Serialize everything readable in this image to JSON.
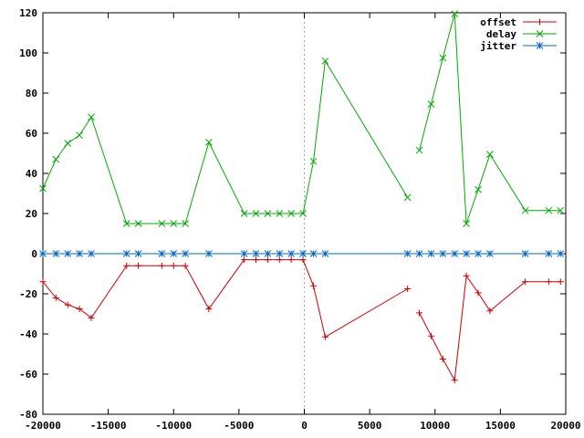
{
  "chart_data": {
    "type": "line",
    "title": "",
    "xlabel": "",
    "ylabel": "",
    "xlim": [
      -20000,
      20000
    ],
    "ylim": [
      -80,
      120
    ],
    "x_ticks": [
      -20000,
      -15000,
      -10000,
      -5000,
      0,
      5000,
      10000,
      15000,
      20000
    ],
    "y_ticks": [
      -80,
      -60,
      -40,
      -20,
      0,
      20,
      40,
      60,
      80,
      100,
      120
    ],
    "zero_line_x": 0,
    "grid": false,
    "legend_position": "top-right",
    "series": [
      {
        "name": "offset",
        "color": "#cc0000",
        "marker": "plus",
        "segments": [
          [
            [
              -20000,
              -14
            ],
            [
              -19000,
              -22
            ],
            [
              -18100,
              -25.5
            ],
            [
              -17200,
              -27.5
            ],
            [
              -16300,
              -32
            ],
            [
              -13600,
              -6
            ],
            [
              -12700,
              -6
            ],
            [
              -10900,
              -6
            ],
            [
              -10000,
              -6
            ],
            [
              -9100,
              -6
            ],
            [
              -7300,
              -27.5
            ],
            [
              -4600,
              -3
            ],
            [
              -3700,
              -3
            ],
            [
              -2800,
              -3
            ],
            [
              -1900,
              -3
            ],
            [
              -1000,
              -3
            ],
            [
              -100,
              -3
            ],
            [
              700,
              -16
            ],
            [
              1600,
              -41.5
            ],
            [
              7900,
              -17.5
            ]
          ],
          [
            [
              8800,
              -29.5
            ],
            [
              9700,
              -41
            ],
            [
              10600,
              -52.5
            ],
            [
              11500,
              -63
            ],
            [
              12400,
              -11
            ],
            [
              13300,
              -19.5
            ],
            [
              14200,
              -28.5
            ],
            [
              16900,
              -14
            ],
            [
              18700,
              -14
            ],
            [
              19600,
              -14
            ]
          ]
        ]
      },
      {
        "name": "delay",
        "color": "#00aa00",
        "marker": "cross",
        "segments": [
          [
            [
              -20000,
              32.5
            ],
            [
              -19000,
              47
            ],
            [
              -18100,
              55
            ],
            [
              -17200,
              59
            ],
            [
              -16300,
              68
            ],
            [
              -13600,
              15
            ],
            [
              -12700,
              15
            ],
            [
              -10900,
              15
            ],
            [
              -10000,
              15
            ],
            [
              -9100,
              15
            ],
            [
              -7300,
              55.5
            ],
            [
              -4600,
              20
            ],
            [
              -3700,
              20
            ],
            [
              -2800,
              20
            ],
            [
              -1900,
              20
            ],
            [
              -1000,
              20
            ],
            [
              -100,
              20
            ],
            [
              700,
              46
            ],
            [
              1600,
              96
            ],
            [
              7900,
              28
            ]
          ],
          [
            [
              8800,
              51.5
            ],
            [
              9700,
              74.5
            ],
            [
              10600,
              97.5
            ],
            [
              11500,
              119.5
            ],
            [
              12400,
              15
            ],
            [
              13300,
              32
            ],
            [
              14200,
              49.5
            ],
            [
              16900,
              21.5
            ],
            [
              18700,
              21.5
            ],
            [
              19600,
              21.5
            ]
          ]
        ]
      },
      {
        "name": "jitter",
        "color": "#0066cc",
        "marker": "star",
        "segments": [
          [
            [
              -20000,
              0
            ],
            [
              -19000,
              0
            ],
            [
              -18100,
              0
            ],
            [
              -17200,
              0
            ],
            [
              -16300,
              0
            ],
            [
              -13600,
              0
            ],
            [
              -12700,
              0
            ],
            [
              -10900,
              0
            ],
            [
              -10000,
              0
            ],
            [
              -9100,
              0
            ],
            [
              -7300,
              0
            ],
            [
              -4600,
              0
            ],
            [
              -3700,
              0
            ],
            [
              -2800,
              0
            ],
            [
              -1900,
              0
            ],
            [
              -1000,
              0
            ],
            [
              -100,
              0
            ],
            [
              700,
              0
            ],
            [
              1600,
              0
            ],
            [
              7900,
              0
            ],
            [
              8800,
              0
            ],
            [
              9700,
              0
            ],
            [
              10600,
              0
            ],
            [
              11500,
              0
            ],
            [
              12400,
              0
            ],
            [
              13300,
              0
            ],
            [
              14200,
              0
            ],
            [
              16900,
              0
            ],
            [
              18700,
              0
            ],
            [
              19600,
              0
            ]
          ]
        ]
      }
    ]
  }
}
